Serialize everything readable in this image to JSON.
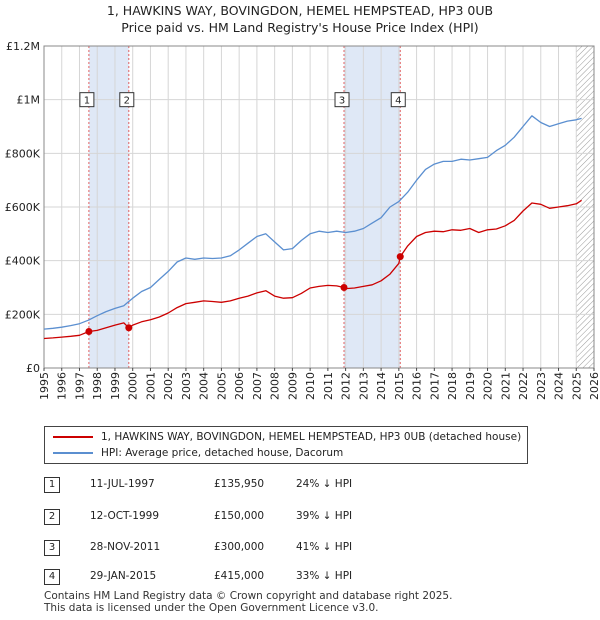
{
  "title_line1": "1, HAWKINS WAY, BOVINGDON, HEMEL HEMPSTEAD, HP3 0UB",
  "title_line2": "Price paid vs. HM Land Registry's House Price Index (HPI)",
  "legend": {
    "property_label": "1, HAWKINS WAY, BOVINGDON, HEMEL HEMPSTEAD, HP3 0UB (detached house)",
    "hpi_label": "HPI: Average price, detached house, Dacorum"
  },
  "transactions": [
    {
      "num": "1",
      "date": "11-JUL-1997",
      "price": "£135,950",
      "hpi": "24% ↓ HPI"
    },
    {
      "num": "2",
      "date": "12-OCT-1999",
      "price": "£150,000",
      "hpi": "39% ↓ HPI"
    },
    {
      "num": "3",
      "date": "28-NOV-2011",
      "price": "£300,000",
      "hpi": "41% ↓ HPI"
    },
    {
      "num": "4",
      "date": "29-JAN-2015",
      "price": "£415,000",
      "hpi": "33% ↓ HPI"
    }
  ],
  "footer_line1": "Contains HM Land Registry data © Crown copyright and database right 2025.",
  "footer_line2": "This data is licensed under the Open Government Licence v3.0.",
  "colors": {
    "property": "#cc0000",
    "hpi": "#5b8fd0",
    "shade": "#dfe8f6",
    "grid": "#d6d6d6",
    "marker_line": "#e06060"
  },
  "chart_data": {
    "type": "line",
    "title": "Price paid vs. HM Land Registry's House Price Index (HPI)",
    "xlabel": "",
    "ylabel": "",
    "xlim": [
      1995,
      2026
    ],
    "ylim": [
      0,
      1200000
    ],
    "x_ticks": [
      "1995",
      "1996",
      "1997",
      "1998",
      "1999",
      "2000",
      "2001",
      "2002",
      "2003",
      "2004",
      "2005",
      "2006",
      "2007",
      "2008",
      "2009",
      "2010",
      "2011",
      "2012",
      "2013",
      "2014",
      "2015",
      "2016",
      "2017",
      "2018",
      "2019",
      "2020",
      "2021",
      "2022",
      "2023",
      "2024",
      "2025",
      "2026"
    ],
    "y_ticks": [
      {
        "value": 0,
        "label": "£0"
      },
      {
        "value": 200000,
        "label": "£200K"
      },
      {
        "value": 400000,
        "label": "£400K"
      },
      {
        "value": 600000,
        "label": "£600K"
      },
      {
        "value": 800000,
        "label": "£800K"
      },
      {
        "value": 1000000,
        "label": "£1M"
      },
      {
        "value": 1200000,
        "label": "£1.2M"
      }
    ],
    "shaded_ranges": [
      [
        1997.53,
        1999.78
      ],
      [
        2011.91,
        2015.08
      ]
    ],
    "hatched_from": 2025.0,
    "sales": [
      {
        "label": "1",
        "x": 1997.53,
        "y": 135950
      },
      {
        "label": "2",
        "x": 1999.78,
        "y": 150000
      },
      {
        "label": "3",
        "x": 2011.91,
        "y": 300000
      },
      {
        "label": "4",
        "x": 2015.08,
        "y": 415000
      }
    ],
    "series": [
      {
        "name": "1, HAWKINS WAY, BOVINGDON, HEMEL HEMPSTEAD, HP3 0UB (detached house)",
        "x": [
          1995.0,
          1995.5,
          1996.0,
          1996.5,
          1997.0,
          1997.53,
          1998.0,
          1998.5,
          1999.0,
          1999.5,
          1999.78,
          2000.0,
          2000.5,
          2001.0,
          2001.5,
          2002.0,
          2002.5,
          2003.0,
          2003.5,
          2004.0,
          2004.5,
          2005.0,
          2005.5,
          2006.0,
          2006.5,
          2007.0,
          2007.5,
          2008.0,
          2008.5,
          2009.0,
          2009.5,
          2010.0,
          2010.5,
          2011.0,
          2011.5,
          2011.91,
          2012.0,
          2012.5,
          2013.0,
          2013.5,
          2014.0,
          2014.5,
          2015.0,
          2015.08,
          2015.5,
          2016.0,
          2016.5,
          2017.0,
          2017.5,
          2018.0,
          2018.5,
          2019.0,
          2019.5,
          2020.0,
          2020.5,
          2021.0,
          2021.5,
          2022.0,
          2022.5,
          2023.0,
          2023.5,
          2024.0,
          2024.5,
          2025.0,
          2025.3
        ],
        "y": [
          110000,
          112000,
          115000,
          118000,
          122000,
          135950,
          140000,
          150000,
          160000,
          168000,
          150000,
          160000,
          172000,
          180000,
          190000,
          205000,
          225000,
          240000,
          245000,
          250000,
          248000,
          245000,
          250000,
          260000,
          268000,
          280000,
          288000,
          268000,
          260000,
          262000,
          278000,
          298000,
          304000,
          308000,
          306000,
          300000,
          296000,
          298000,
          304000,
          310000,
          325000,
          350000,
          390000,
          415000,
          455000,
          490000,
          505000,
          510000,
          508000,
          515000,
          513000,
          520000,
          505000,
          515000,
          518000,
          530000,
          550000,
          585000,
          615000,
          610000,
          595000,
          600000,
          605000,
          612000,
          625000
        ]
      },
      {
        "name": "HPI: Average price, detached house, Dacorum",
        "x": [
          1995.0,
          1995.5,
          1996.0,
          1996.5,
          1997.0,
          1997.5,
          1998.0,
          1998.5,
          1999.0,
          1999.5,
          2000.0,
          2000.5,
          2001.0,
          2001.5,
          2002.0,
          2002.5,
          2003.0,
          2003.5,
          2004.0,
          2004.5,
          2005.0,
          2005.5,
          2006.0,
          2006.5,
          2007.0,
          2007.5,
          2008.0,
          2008.5,
          2009.0,
          2009.5,
          2010.0,
          2010.5,
          2011.0,
          2011.5,
          2012.0,
          2012.5,
          2013.0,
          2013.5,
          2014.0,
          2014.5,
          2015.0,
          2015.5,
          2016.0,
          2016.5,
          2017.0,
          2017.5,
          2018.0,
          2018.5,
          2019.0,
          2019.5,
          2020.0,
          2020.5,
          2021.0,
          2021.5,
          2022.0,
          2022.5,
          2023.0,
          2023.5,
          2024.0,
          2024.5,
          2025.0,
          2025.3
        ],
        "y": [
          145000,
          148000,
          152000,
          158000,
          165000,
          178000,
          195000,
          210000,
          222000,
          232000,
          260000,
          285000,
          300000,
          330000,
          360000,
          395000,
          410000,
          405000,
          410000,
          408000,
          410000,
          418000,
          440000,
          465000,
          490000,
          500000,
          470000,
          440000,
          445000,
          475000,
          500000,
          510000,
          505000,
          510000,
          505000,
          510000,
          520000,
          540000,
          560000,
          600000,
          620000,
          655000,
          700000,
          740000,
          760000,
          770000,
          770000,
          778000,
          775000,
          780000,
          785000,
          810000,
          830000,
          860000,
          900000,
          940000,
          915000,
          900000,
          910000,
          920000,
          925000,
          930000
        ]
      }
    ]
  }
}
